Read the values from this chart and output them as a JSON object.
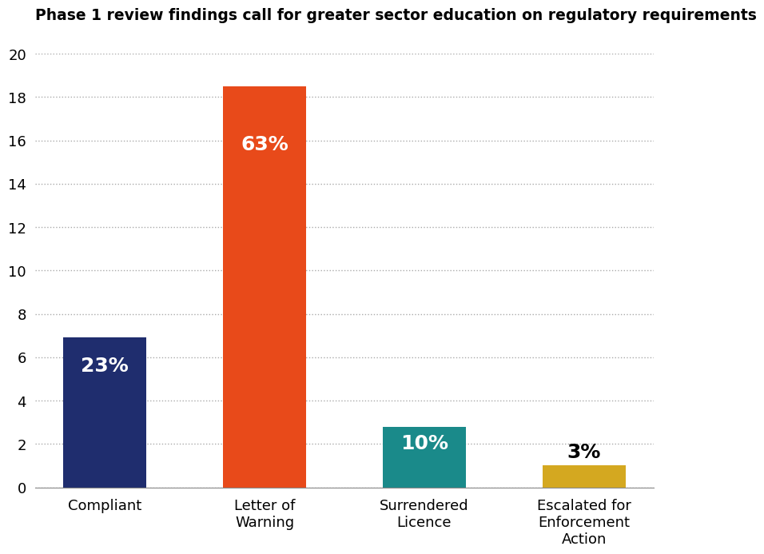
{
  "title": "Phase 1 review findings call for greater sector education on regulatory requirements",
  "categories": [
    "Compliant",
    "Letter of\nWarning",
    "Surrendered\nLicence",
    "Escalated for\nEnforcement\nAction"
  ],
  "values": [
    6.9,
    18.5,
    2.8,
    1.0
  ],
  "labels": [
    "23%",
    "63%",
    "10%",
    "3%"
  ],
  "bar_colors": [
    "#1f2d6e",
    "#e84a1a",
    "#1a8a8a",
    "#d4a820"
  ],
  "label_colors": [
    "white",
    "white",
    "white",
    "black"
  ],
  "label_inside": [
    true,
    true,
    true,
    false
  ],
  "ylim": [
    0,
    20
  ],
  "yticks": [
    0,
    2,
    4,
    6,
    8,
    10,
    12,
    14,
    16,
    18,
    20
  ],
  "title_fontsize": 13.5,
  "label_fontsize": 18,
  "tick_fontsize": 13,
  "background_color": "#ffffff",
  "grid_color": "#aaaaaa"
}
